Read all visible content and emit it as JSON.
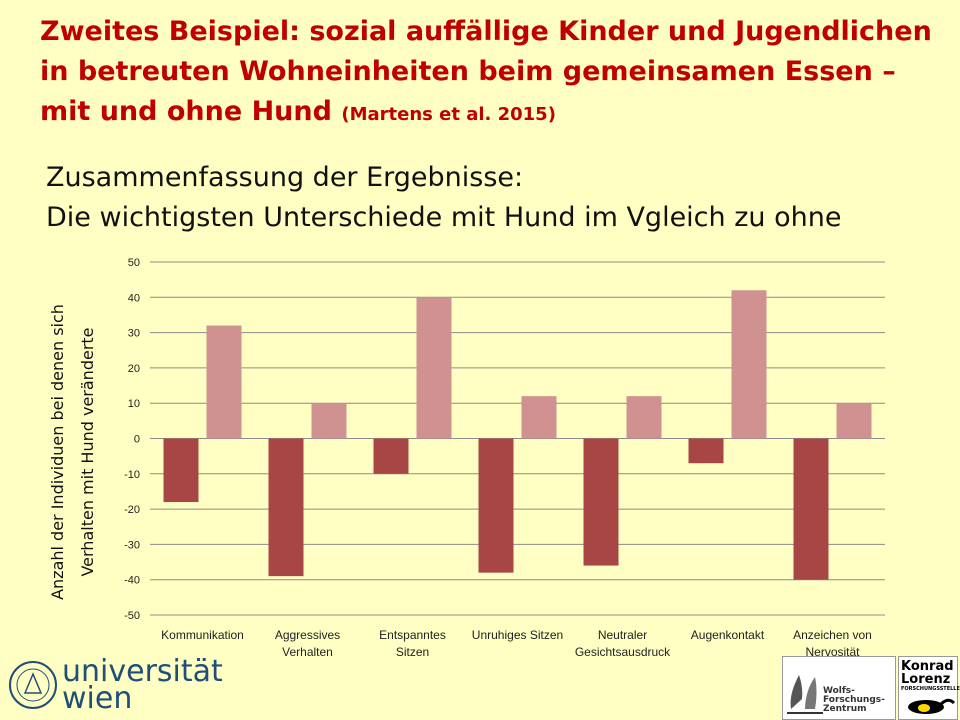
{
  "slide": {
    "title_lead": "Zweites Beispiel:",
    "title_main": "sozial auffällige Kinder und Jugendlichen in betreuten Wohneinheiten beim gemeinsamen Essen – mit und ohne Hund",
    "title_citation": "(Martens et al. 2015)",
    "subtitle_line1": "Zusammenfassung der Ergebnisse:",
    "subtitle_line2": "Die wichtigsten Unterschiede mit Hund im Vgleich zu ohne"
  },
  "chart_data": {
    "type": "bar",
    "ylabel_line1": "Anzahl der Individuen bei denen sich",
    "ylabel_line2": "Verhalten mit Hund veränderte",
    "ylim": [
      -50,
      50
    ],
    "yticks": [
      50,
      40,
      30,
      20,
      10,
      0,
      -10,
      -20,
      -30,
      -40,
      -50
    ],
    "grid": true,
    "legend": "none",
    "categories": [
      [
        "Kommunikation"
      ],
      [
        "Aggressives",
        "Verhalten"
      ],
      [
        "Entspanntes",
        "Sitzen"
      ],
      [
        "Unruhiges Sitzen"
      ],
      [
        "Neutraler",
        "Gesichtsausdruck"
      ],
      [
        "Augenkontakt"
      ],
      [
        "Anzeichen von",
        "Nervosität"
      ]
    ],
    "series": [
      {
        "color": "#a84646",
        "values": [
          -18,
          -39,
          -10,
          -38,
          -36,
          -7,
          -40
        ]
      },
      {
        "color": "#d09191",
        "values": [
          32,
          10,
          40,
          12,
          12,
          42,
          10
        ]
      }
    ]
  },
  "logos": {
    "university_line1": "universität",
    "university_line2": "wien",
    "wolf_center_line1": "Wolfs-",
    "wolf_center_line2": "Forschungs-",
    "wolf_center_line3": "Zentrum",
    "klf_line1": "Konrad",
    "klf_line2": "Lorenz",
    "klf_line3": "FORSCHUNGSSTELLE"
  }
}
